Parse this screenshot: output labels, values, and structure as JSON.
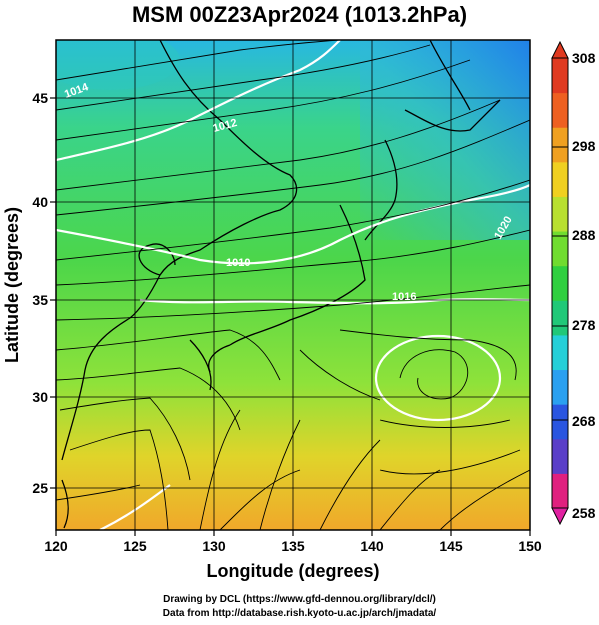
{
  "title": "MSM 00Z23Apr2024 (1013.2hPa)",
  "axes": {
    "xlabel": "Longitude (degrees)",
    "ylabel": "Latitude  (degrees)",
    "xticks": [
      "120",
      "125",
      "130",
      "135",
      "140",
      "145",
      "150"
    ],
    "yticks": [
      "25",
      "30",
      "35",
      "40",
      "45"
    ]
  },
  "colorbar": {
    "ticks": [
      "308",
      "298",
      "288",
      "278",
      "268",
      "258"
    ],
    "colors": [
      "#e0207f",
      "#5a3fc8",
      "#2a55e0",
      "#2aa0f0",
      "#25d0d8",
      "#20c878",
      "#30d040",
      "#70dc30",
      "#b8e030",
      "#f0d020",
      "#f0a020",
      "#ee6020",
      "#e03a20"
    ]
  },
  "contours": {
    "label_1014": "1014",
    "label_1012": "1012",
    "label_1010": "1010",
    "label_1016": "1016",
    "label_1020": "1020"
  },
  "footer": {
    "line1": "Drawing by DCL (https://www.gfd-dennou.org/library/dcl/)",
    "line2": "Data from http://database.rish.kyoto-u.ac.jp/arch/jmadata/"
  },
  "chart_data": {
    "type": "heatmap",
    "xlim": [
      120,
      150
    ],
    "ylim": [
      22.5,
      48
    ],
    "clim": [
      258,
      308
    ],
    "grid": true,
    "field": "temperature with wind streamlines and white isobars"
  }
}
